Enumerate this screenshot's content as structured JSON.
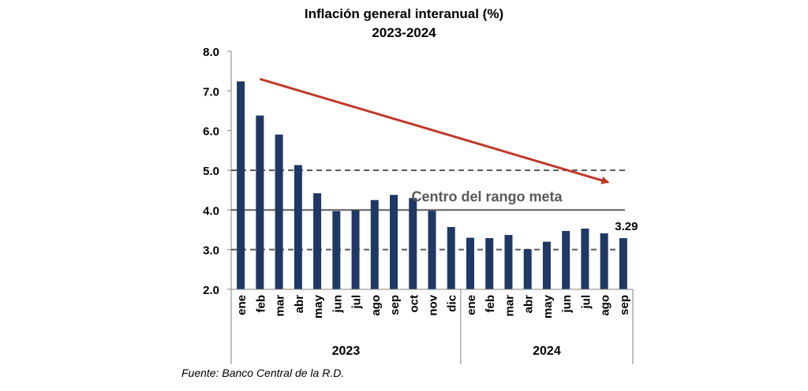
{
  "chart_data": {
    "type": "bar",
    "title": "Inflación general interanual (%)",
    "subtitle": "2023-2024",
    "categories": [
      "ene",
      "feb",
      "mar",
      "abr",
      "may",
      "jun",
      "jul",
      "ago",
      "sep",
      "oct",
      "nov",
      "dic",
      "ene",
      "feb",
      "mar",
      "abr",
      "may",
      "jun",
      "jul",
      "ago",
      "sep"
    ],
    "year_groups": [
      {
        "label": "2023",
        "count": 12
      },
      {
        "label": "2024",
        "count": 9
      }
    ],
    "values": [
      7.24,
      6.38,
      5.9,
      5.13,
      4.42,
      3.97,
      3.99,
      4.25,
      4.38,
      4.3,
      3.98,
      3.57,
      3.3,
      3.29,
      3.37,
      3.01,
      3.2,
      3.47,
      3.53,
      3.41,
      3.29
    ],
    "bar_color": "#1f3864",
    "ylim": [
      2.0,
      8.0
    ],
    "yticks": [
      "2.0",
      "3.0",
      "4.0",
      "5.0",
      "6.0",
      "7.0",
      "8.0"
    ],
    "grid": false,
    "reference_lines": [
      {
        "value": 5.0,
        "style": "dashed",
        "color": "#595959"
      },
      {
        "value": 4.0,
        "style": "solid",
        "color": "#595959",
        "label": "Centro del rango meta"
      },
      {
        "value": 3.0,
        "style": "dashed",
        "color": "#595959"
      }
    ],
    "trend_arrow": {
      "from_index": 1,
      "from_value": 7.3,
      "to_index": 19.2,
      "to_value": 4.7,
      "color": "#c0392b"
    },
    "data_labels": [
      {
        "index": 20,
        "text": "3.29"
      }
    ],
    "source": "Fuente: Banco Central de la R.D."
  }
}
